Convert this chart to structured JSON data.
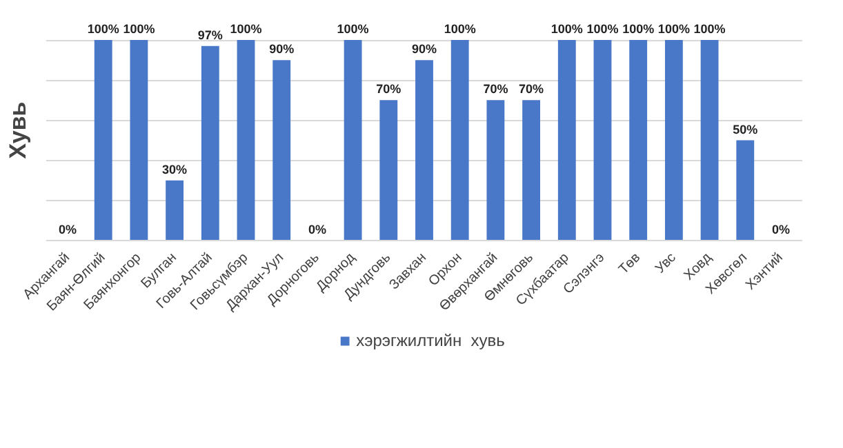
{
  "chart_data": {
    "type": "bar",
    "ylabel": "Хувь",
    "categories": [
      "Архангай",
      "Баян-Өлгий",
      "Баянхонгор",
      "Булган",
      "Говь-Алтай",
      "Говьсүмбэр",
      "Дархан-Уул",
      "Дорноговь",
      "Дорнод",
      "Дундговь",
      "Завхан",
      "Орхон",
      "Өвөрхангай",
      "Өмнөговь",
      "Сүхбаатар",
      "Сэлэнгэ",
      "Төв",
      "Увс",
      "Ховд",
      "Хөвсгөл",
      "Хэнтий"
    ],
    "series": [
      {
        "name": "хэрэгжилтийн  хувь",
        "color": "#4a78c9",
        "values": [
          0,
          100,
          100,
          30,
          97,
          100,
          90,
          0,
          100,
          70,
          90,
          100,
          70,
          70,
          100,
          100,
          100,
          100,
          100,
          50,
          0
        ],
        "value_labels": [
          "0%",
          "100%",
          "100%",
          "30%",
          "97%",
          "100%",
          "90%",
          "0%",
          "100%",
          "70%",
          "90%",
          "100%",
          "70%",
          "70%",
          "100%",
          "100%",
          "100%",
          "100%",
          "100%",
          "50%",
          "0%"
        ]
      }
    ],
    "yticks": [
      {
        "value": 0,
        "label": null
      },
      {
        "value": 20,
        "label": null
      },
      {
        "value": 40,
        "label": null
      },
      {
        "value": 60,
        "label": null
      },
      {
        "value": 80,
        "label": null
      },
      {
        "value": 100,
        "label": null
      }
    ],
    "grid": "y",
    "tick_labels": "x",
    "legend": "bottom"
  }
}
